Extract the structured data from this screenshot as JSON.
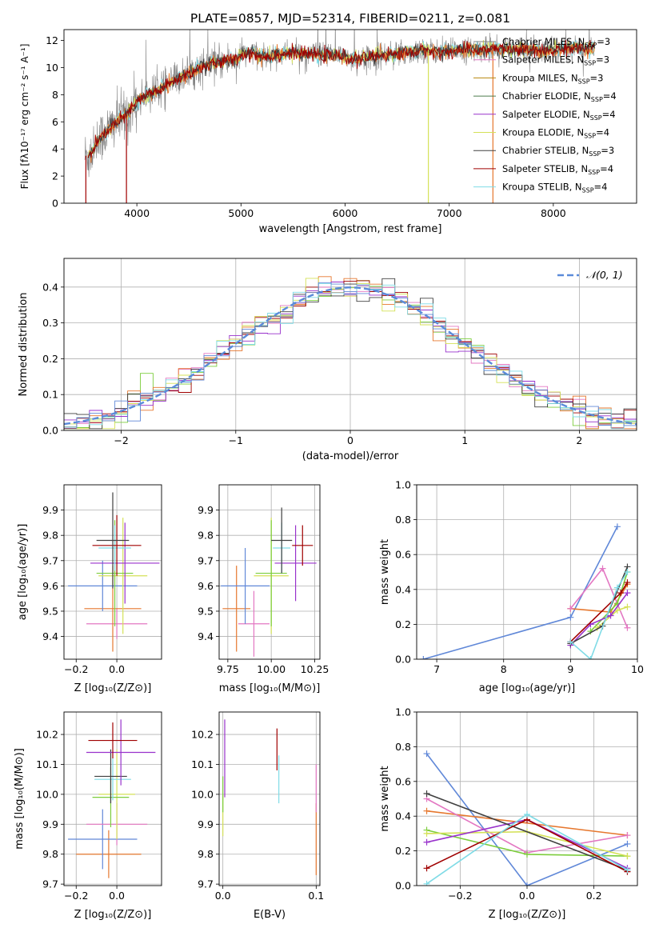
{
  "figure_title": "PLATE=0857, MJD=52314, FIBERID=0211, z=0.081",
  "colors": {
    "series": [
      "#808080",
      "#e377c2",
      "#b8860b",
      "#4d7c4d",
      "#9932cc",
      "#d4e157",
      "#404040",
      "#a00000",
      "#7fdbe6"
    ],
    "orange": "#e6772e",
    "blue": "#6088d8",
    "green": "#7ccd3c",
    "gauss": "#5b8bd9",
    "grid": "#b0b0b0"
  },
  "chart_data": [
    {
      "id": "spectrum",
      "type": "line",
      "xlabel": "wavelength [Angstrom, rest frame]",
      "ylabel": "Flux [fλ10⁻¹⁷ erg cm⁻² s⁻¹ A⁻¹]",
      "xlim": [
        3300,
        8800
      ],
      "ylim": [
        0,
        12.8
      ],
      "xticks": [
        "4000",
        "5000",
        "6000",
        "7000",
        "8000"
      ],
      "yticks": [
        "0",
        "2",
        "4",
        "6",
        "8",
        "10",
        "12"
      ],
      "grid": false,
      "legend_position": "top-right",
      "legend": [
        "Chabrier MILES, N_SSP=3",
        "Salpeter MILES, N_SSP=3",
        "Kroupa MILES, N_SSP=3",
        "Chabrier ELODIE, N_SSP=4",
        "Salpeter ELODIE, N_SSP=4",
        "Kroupa ELODIE, N_SSP=4",
        "Chabrier STELIB, N_SSP=3",
        "Salpeter STELIB, N_SSP=4",
        "Kroupa STELIB, N_SSP=4"
      ],
      "continuum": [
        [
          3550,
          3.5
        ],
        [
          3620,
          4.5
        ],
        [
          3700,
          5.2
        ],
        [
          3800,
          6.0
        ],
        [
          3900,
          6.5
        ],
        [
          4000,
          7.5
        ],
        [
          4100,
          8.0
        ],
        [
          4200,
          8.3
        ],
        [
          4300,
          8.7
        ],
        [
          4400,
          9.2
        ],
        [
          4500,
          9.6
        ],
        [
          4600,
          10.0
        ],
        [
          4700,
          10.2
        ],
        [
          4800,
          10.4
        ],
        [
          4900,
          10.6
        ],
        [
          5000,
          10.9
        ],
        [
          5100,
          11.1
        ],
        [
          5200,
          10.8
        ],
        [
          5300,
          10.9
        ],
        [
          5400,
          11.0
        ],
        [
          5500,
          11.1
        ],
        [
          5600,
          11.0
        ],
        [
          5700,
          11.0
        ],
        [
          5800,
          10.9
        ],
        [
          5900,
          10.9
        ],
        [
          6000,
          10.8
        ],
        [
          6100,
          10.6
        ],
        [
          6200,
          10.7
        ],
        [
          6300,
          10.9
        ],
        [
          6400,
          11.0
        ],
        [
          6500,
          11.0
        ],
        [
          6600,
          11.1
        ],
        [
          6700,
          11.2
        ],
        [
          6800,
          11.3
        ],
        [
          6900,
          11.1
        ],
        [
          7000,
          11.2
        ],
        [
          7100,
          11.3
        ],
        [
          7200,
          11.3
        ],
        [
          7300,
          11.3
        ],
        [
          7400,
          11.4
        ],
        [
          7500,
          11.4
        ],
        [
          7600,
          11.4
        ],
        [
          7700,
          11.3
        ],
        [
          7800,
          11.3
        ],
        [
          7900,
          11.2
        ],
        [
          8000,
          11.3
        ],
        [
          8100,
          11.4
        ],
        [
          8200,
          11.5
        ],
        [
          8300,
          11.4
        ],
        [
          8400,
          11.5
        ]
      ],
      "data_start": 3500,
      "data_end": 8400,
      "dropouts": [
        [
          3510,
          0
        ],
        [
          3900,
          0
        ],
        [
          6800,
          0
        ],
        [
          7420,
          0
        ]
      ]
    },
    {
      "id": "residuals",
      "type": "step",
      "xlabel": "(data-model)/error",
      "ylabel": "Normed distribution",
      "xlim": [
        -2.5,
        2.5
      ],
      "ylim": [
        0,
        0.48
      ],
      "xticks": [
        "−2",
        "−1",
        "0",
        "1",
        "2"
      ],
      "yticks": [
        "0.0",
        "0.1",
        "0.2",
        "0.3",
        "0.4"
      ],
      "grid": true,
      "legend_position": "top-right",
      "legend": [
        "𝒩(0, 1)"
      ],
      "bin_edges_range": [
        -2.5,
        2.5
      ],
      "n_bins": 45
    },
    {
      "id": "age_vs_Z",
      "type": "errorbar",
      "xlabel": "Z [log₁₀(Z/Z⊙)]",
      "ylabel": "age  [log₁₀(age/yr)]",
      "xlim": [
        -0.26,
        0.22
      ],
      "ylim": [
        9.31,
        10.0
      ],
      "xticks": [
        "−0.2",
        "0.0"
      ],
      "yticks": [
        "9.4",
        "9.5",
        "9.6",
        "9.7",
        "9.8",
        "9.9"
      ],
      "grid": true,
      "points": [
        {
          "x": 0.0,
          "y": 9.45,
          "xerr": 0.15,
          "yerr": 0.06,
          "color": "#e377c2"
        },
        {
          "x": -0.02,
          "y": 9.51,
          "xerr": 0.14,
          "yerr": 0.17,
          "color": "#e6772e"
        },
        {
          "x": -0.07,
          "y": 9.6,
          "xerr": 0.17,
          "yerr": 0.1,
          "color": "#6088d8"
        },
        {
          "x": 0.03,
          "y": 9.64,
          "xerr": 0.12,
          "yerr": 0.23,
          "color": "#d4e157"
        },
        {
          "x": -0.01,
          "y": 9.65,
          "xerr": 0.09,
          "yerr": 0.21,
          "color": "#7ccd3c"
        },
        {
          "x": 0.04,
          "y": 9.69,
          "xerr": 0.17,
          "yerr": 0.16,
          "color": "#9932cc"
        },
        {
          "x": -0.01,
          "y": 9.75,
          "xerr": 0.08,
          "yerr": 0.09,
          "color": "#7fdbe6"
        },
        {
          "x": 0.0,
          "y": 9.76,
          "xerr": 0.12,
          "yerr": 0.12,
          "color": "#a00000"
        },
        {
          "x": -0.02,
          "y": 9.78,
          "xerr": 0.08,
          "yerr": 0.19,
          "color": "#404040"
        }
      ]
    },
    {
      "id": "age_vs_mass",
      "type": "errorbar",
      "xlabel": "mass [log₁₀(M/M⊙)]",
      "ylabel": "",
      "xlim": [
        9.7,
        10.28
      ],
      "ylim": [
        9.31,
        10.0
      ],
      "xticks": [
        "9.75",
        "10.00",
        "10.25"
      ],
      "yticks": [
        "9.4",
        "9.5",
        "9.6",
        "9.7",
        "9.8",
        "9.9"
      ],
      "grid": true,
      "points": [
        {
          "x": 9.9,
          "y": 9.45,
          "xerr": 0.09,
          "yerr": 0.13,
          "color": "#e377c2"
        },
        {
          "x": 9.8,
          "y": 9.51,
          "xerr": 0.08,
          "yerr": 0.17,
          "color": "#e6772e"
        },
        {
          "x": 9.85,
          "y": 9.6,
          "xerr": 0.14,
          "yerr": 0.15,
          "color": "#6088d8"
        },
        {
          "x": 10.0,
          "y": 9.64,
          "xerr": 0.1,
          "yerr": 0.23,
          "color": "#d4e157"
        },
        {
          "x": 10.0,
          "y": 9.65,
          "xerr": 0.09,
          "yerr": 0.21,
          "color": "#7ccd3c"
        },
        {
          "x": 10.14,
          "y": 9.69,
          "xerr": 0.12,
          "yerr": 0.15,
          "color": "#9932cc"
        },
        {
          "x": 10.06,
          "y": 9.75,
          "xerr": 0.05,
          "yerr": 0.1,
          "color": "#7fdbe6"
        },
        {
          "x": 10.18,
          "y": 9.76,
          "xerr": 0.06,
          "yerr": 0.08,
          "color": "#a00000"
        },
        {
          "x": 10.06,
          "y": 9.78,
          "xerr": 0.06,
          "yerr": 0.13,
          "color": "#404040"
        }
      ]
    },
    {
      "id": "mass_weight_vs_age",
      "type": "line",
      "xlabel": "age  [log₁₀(age/yr)]",
      "ylabel": "mass weight",
      "xlim": [
        6.7,
        10.0
      ],
      "ylim": [
        0,
        1.0
      ],
      "xticks": [
        "7",
        "8",
        "9",
        "10"
      ],
      "yticks": [
        "0.0",
        "0.2",
        "0.4",
        "0.6",
        "0.8",
        "1.0"
      ],
      "grid": true,
      "series": [
        {
          "color": "#6088d8",
          "x": [
            6.8,
            9.0,
            9.7
          ],
          "y": [
            0.0,
            0.24,
            0.76
          ]
        },
        {
          "color": "#e6772e",
          "x": [
            9.0,
            9.6,
            9.85
          ],
          "y": [
            0.29,
            0.27,
            0.43
          ]
        },
        {
          "color": "#e377c2",
          "x": [
            9.0,
            9.48,
            9.85
          ],
          "y": [
            0.29,
            0.52,
            0.18
          ]
        },
        {
          "color": "#7ccd3c",
          "x": [
            9.3,
            9.7,
            9.85
          ],
          "y": [
            0.16,
            0.32,
            0.5
          ]
        },
        {
          "color": "#d4e157",
          "x": [
            9.4,
            9.7,
            9.85
          ],
          "y": [
            0.18,
            0.28,
            0.3
          ]
        },
        {
          "color": "#9932cc",
          "x": [
            9.0,
            9.3,
            9.6,
            9.85
          ],
          "y": [
            0.08,
            0.2,
            0.25,
            0.38
          ]
        },
        {
          "color": "#404040",
          "x": [
            9.0,
            9.48,
            9.85
          ],
          "y": [
            0.09,
            0.19,
            0.53
          ]
        },
        {
          "color": "#a00000",
          "x": [
            9.0,
            9.75,
            9.85
          ],
          "y": [
            0.1,
            0.38,
            0.44
          ]
        },
        {
          "color": "#7fdbe6",
          "x": [
            9.0,
            9.3,
            9.7,
            9.85
          ],
          "y": [
            0.1,
            0.0,
            0.41,
            0.5
          ]
        }
      ]
    },
    {
      "id": "mass_vs_Z",
      "type": "errorbar",
      "xlabel": "Z [log₁₀(Z/Z⊙)]",
      "ylabel": "mass [log₁₀(M/M⊙)]",
      "xlim": [
        -0.26,
        0.22
      ],
      "ylim": [
        9.695,
        10.275
      ],
      "xticks": [
        "−0.2",
        "0.0"
      ],
      "yticks": [
        "9.7",
        "9.8",
        "9.9",
        "10.0",
        "10.1",
        "10.2"
      ],
      "grid": true,
      "points": [
        {
          "x": -0.04,
          "y": 9.8,
          "xerr": 0.16,
          "yerr": 0.08,
          "color": "#e6772e"
        },
        {
          "x": -0.07,
          "y": 9.85,
          "xerr": 0.17,
          "yerr": 0.1,
          "color": "#6088d8"
        },
        {
          "x": 0.0,
          "y": 9.9,
          "xerr": 0.15,
          "yerr": 0.07,
          "color": "#e377c2"
        },
        {
          "x": 0.0,
          "y": 10.0,
          "xerr": 0.09,
          "yerr": 0.15,
          "color": "#d4e157"
        },
        {
          "x": -0.03,
          "y": 9.99,
          "xerr": 0.09,
          "yerr": 0.1,
          "color": "#7ccd3c"
        },
        {
          "x": -0.02,
          "y": 10.05,
          "xerr": 0.09,
          "yerr": 0.07,
          "color": "#7fdbe6"
        },
        {
          "x": -0.03,
          "y": 10.06,
          "xerr": 0.08,
          "yerr": 0.09,
          "color": "#404040"
        },
        {
          "x": 0.02,
          "y": 10.14,
          "xerr": 0.17,
          "yerr": 0.11,
          "color": "#9932cc"
        },
        {
          "x": -0.02,
          "y": 10.18,
          "xerr": 0.12,
          "yerr": 0.06,
          "color": "#a00000"
        }
      ]
    },
    {
      "id": "mass_vs_EBV",
      "type": "errorbar",
      "xlabel": "E(B-V)",
      "ylabel": "",
      "xlim": [
        -0.004,
        0.104
      ],
      "ylim": [
        9.695,
        10.275
      ],
      "xticks": [
        "0.0",
        "0.1"
      ],
      "yticks": [
        "9.7",
        "9.8",
        "9.9",
        "10.0",
        "10.1",
        "10.2"
      ],
      "grid": true,
      "points": [
        {
          "x": 0.0,
          "y": 9.93,
          "xerr": 0.0,
          "yerr": 0.07,
          "color": "#d4e157"
        },
        {
          "x": 0.0,
          "y": 10.0,
          "xerr": 0.0,
          "yerr": 0.06,
          "color": "#7ccd3c"
        },
        {
          "x": 0.002,
          "y": 10.12,
          "xerr": 0.0,
          "yerr": 0.13,
          "color": "#9932cc"
        },
        {
          "x": 0.058,
          "y": 10.15,
          "xerr": 0.0,
          "yerr": 0.07,
          "color": "#a00000"
        },
        {
          "x": 0.06,
          "y": 10.05,
          "xerr": 0.0,
          "yerr": 0.08,
          "color": "#7fdbe6"
        },
        {
          "x": 0.1,
          "y": 9.85,
          "xerr": 0.0,
          "yerr": 0.12,
          "color": "#e6772e"
        },
        {
          "x": 0.1,
          "y": 10.02,
          "xerr": 0.0,
          "yerr": 0.08,
          "color": "#e377c2"
        }
      ]
    },
    {
      "id": "mass_weight_vs_Z",
      "type": "line",
      "xlabel": "Z [log₁₀(Z/Z⊙)]",
      "ylabel": "mass weight",
      "xlim": [
        -0.33,
        0.33
      ],
      "ylim": [
        0,
        1.0
      ],
      "xticks": [
        "−0.2",
        "0.0",
        "0.2"
      ],
      "yticks": [
        "0.0",
        "0.2",
        "0.4",
        "0.6",
        "0.8",
        "1.0"
      ],
      "grid": true,
      "series": [
        {
          "color": "#6088d8",
          "x": [
            -0.3,
            0.0,
            0.3
          ],
          "y": [
            0.76,
            0.0,
            0.24
          ]
        },
        {
          "color": "#e6772e",
          "x": [
            -0.3,
            0.3
          ],
          "y": [
            0.43,
            0.29
          ]
        },
        {
          "color": "#e377c2",
          "x": [
            -0.3,
            0.0,
            0.3
          ],
          "y": [
            0.5,
            0.19,
            0.29
          ]
        },
        {
          "color": "#7ccd3c",
          "x": [
            -0.3,
            0.0,
            0.3
          ],
          "y": [
            0.32,
            0.18,
            0.17
          ]
        },
        {
          "color": "#d4e157",
          "x": [
            -0.3,
            0.0,
            0.3
          ],
          "y": [
            0.3,
            0.31,
            0.17
          ]
        },
        {
          "color": "#9932cc",
          "x": [
            -0.3,
            0.0,
            0.3
          ],
          "y": [
            0.25,
            0.38,
            0.1
          ]
        },
        {
          "color": "#404040",
          "x": [
            -0.3,
            0.3
          ],
          "y": [
            0.53,
            0.09
          ]
        },
        {
          "color": "#a00000",
          "x": [
            -0.3,
            0.0,
            0.3
          ],
          "y": [
            0.1,
            0.38,
            0.08
          ]
        },
        {
          "color": "#7fdbe6",
          "x": [
            -0.3,
            0.0,
            0.3
          ],
          "y": [
            0.01,
            0.41,
            0.09
          ]
        }
      ]
    }
  ]
}
